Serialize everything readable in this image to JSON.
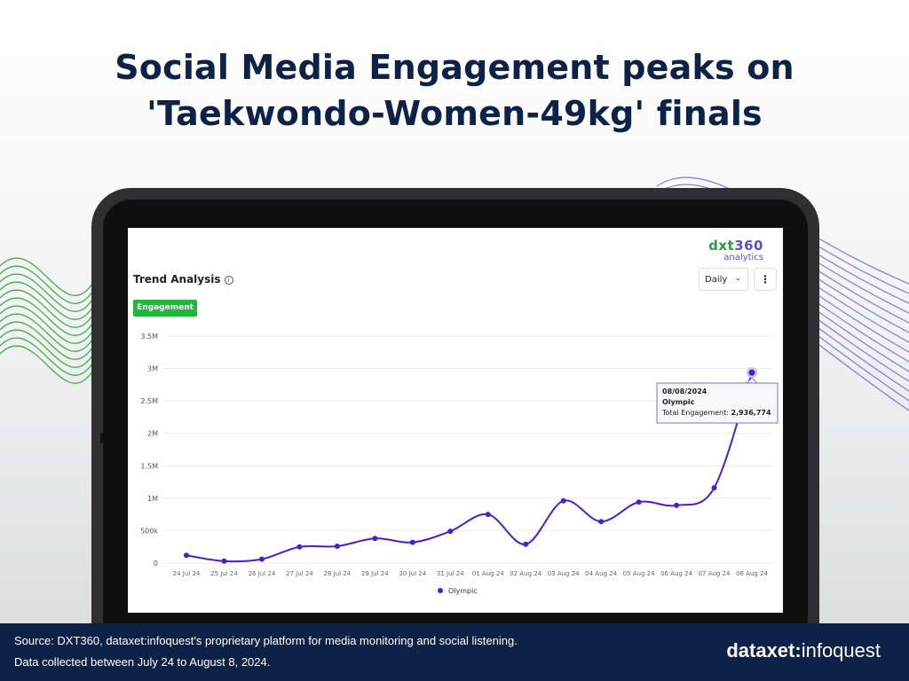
{
  "headline": {
    "line1": "Social Media Engagement peaks on",
    "line2": "'Taekwondo-Women-49kg' finals"
  },
  "brand": {
    "name_part1": "dxt",
    "name_part2": "360",
    "sub": "analytics"
  },
  "panel": {
    "title": "Trend Analysis",
    "info_icon": "i",
    "period_select": "Daily",
    "more_icon": "⋮",
    "metric_button": "Engagement"
  },
  "tooltip": {
    "date": "08/08/2024",
    "series": "Olympic",
    "label": "Total Engagement: ",
    "value": "2,936,774"
  },
  "chart_data": {
    "type": "line",
    "categories": [
      "24 Jul 24",
      "25 Jul 24",
      "26 Jul 24",
      "27 Jul 24",
      "28 Jul 24",
      "29 Jul 24",
      "30 Jul 24",
      "31 Jul 24",
      "01 Aug 24",
      "02 Aug 24",
      "03 Aug 24",
      "04 Aug 24",
      "05 Aug 24",
      "06 Aug 24",
      "07 Aug 24",
      "08 Aug 24"
    ],
    "series": [
      {
        "name": "Olympic",
        "color": "#4a1fcf",
        "values": [
          120000,
          30000,
          60000,
          250000,
          260000,
          380000,
          320000,
          490000,
          750000,
          290000,
          960000,
          640000,
          940000,
          890000,
          1160000,
          2936774
        ]
      }
    ],
    "ylim": [
      0,
      3500000
    ],
    "yticks": [
      0,
      500000,
      1000000,
      1500000,
      2000000,
      2500000,
      3000000,
      3500000
    ],
    "ytick_labels": [
      "0",
      "500k",
      "1M",
      "1.5M",
      "2M",
      "2.5M",
      "3M",
      "3.5M"
    ],
    "grid": true,
    "legend": "bottom-center"
  },
  "footer": {
    "source": "Source: DXT360, dataxet:infoquest's proprietary platform for media monitoring and social listening.",
    "collected": "Data collected between July 24 to August 8, 2024.",
    "logo_bold": "dataxet",
    "logo_sep": ":",
    "logo_light": "infoquest"
  },
  "colors": {
    "title": "#0d2246",
    "footer_bg": "#0d2246",
    "line": "#4a1fcf",
    "engagement_button": "#21b73b",
    "deco_green": "#36a94a",
    "deco_purple": "#6f72d8"
  }
}
